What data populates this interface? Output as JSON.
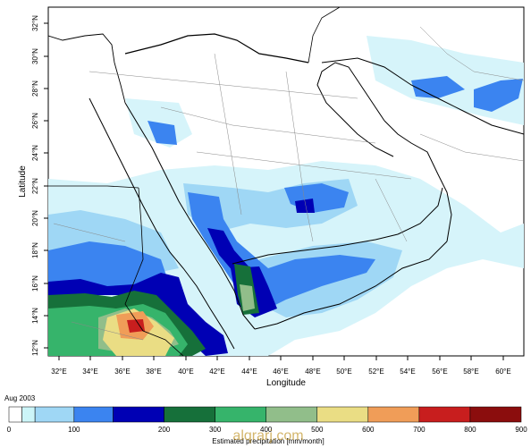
{
  "map": {
    "x_axis_title": "Longitude",
    "y_axis_title": "Latitude",
    "lon_ticks": [
      "32°E",
      "34°E",
      "36°E",
      "38°E",
      "40°E",
      "42°E",
      "44°E",
      "46°E",
      "48°E",
      "50°E",
      "52°E",
      "54°E",
      "56°E",
      "58°E",
      "60°E"
    ],
    "lat_ticks": [
      "12°N",
      "14°N",
      "16°N",
      "18°N",
      "20°N",
      "22°N",
      "24°N",
      "26°N",
      "28°N",
      "30°N",
      "32°N"
    ],
    "lon_range": [
      31,
      61
    ],
    "lat_range": [
      11.5,
      33
    ]
  },
  "colorbar": {
    "period": "Aug 2003",
    "title": "Estimated precipitation [mm/month]",
    "tick_values": [
      "0",
      "100",
      "200",
      "300",
      "400",
      "500",
      "600",
      "700",
      "800",
      "900"
    ],
    "colors": [
      "#ffffff",
      "#ccf5f8",
      "#9fd7f5",
      "#3b84f0",
      "#0000b4",
      "#16703a",
      "#36b46b",
      "#91be8a",
      "#eadd84",
      "#f09d58",
      "#c81e1e",
      "#8b0d0d"
    ]
  },
  "watermark": "alqrarj.com"
}
